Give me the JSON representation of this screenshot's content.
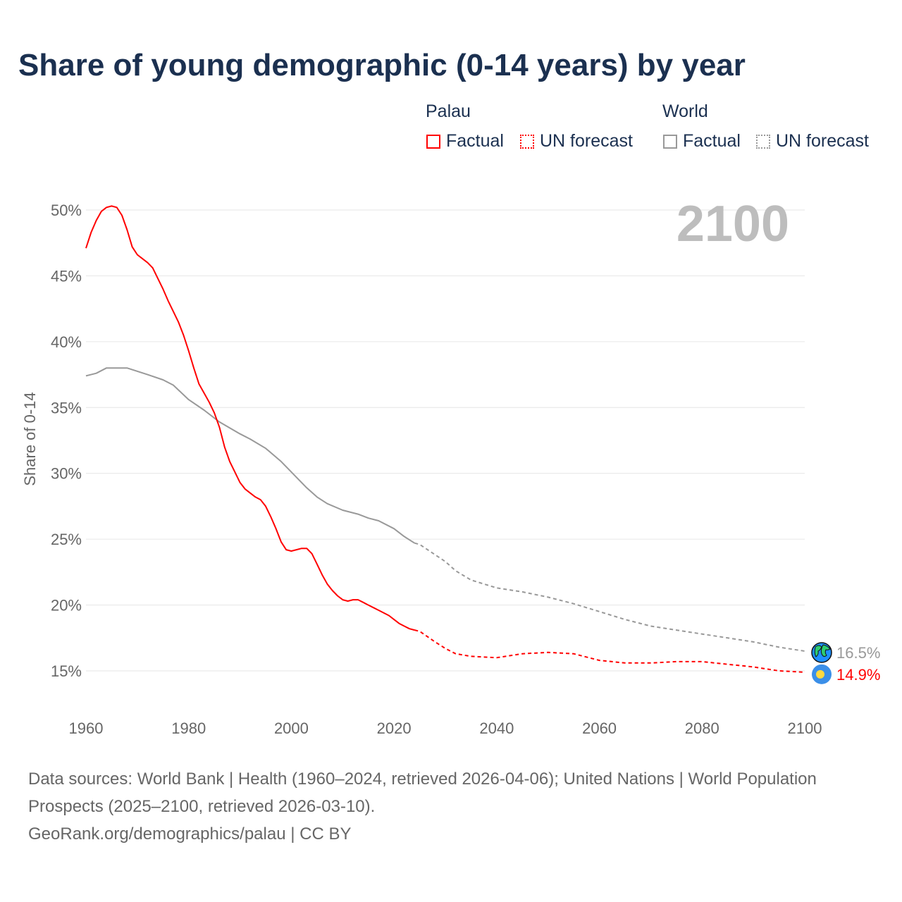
{
  "title": "Share of young demographic (0-14 years) by year",
  "legend": {
    "groups": [
      {
        "name": "Palau",
        "color": "#ff0000",
        "items": [
          "Factual",
          "UN forecast"
        ]
      },
      {
        "name": "World",
        "color": "#999999",
        "items": [
          "Factual",
          "UN forecast"
        ]
      }
    ]
  },
  "chart_data": {
    "type": "line",
    "title": "Share of young demographic (0-14 years) by year",
    "xlabel": "",
    "ylabel": "Share of 0-14",
    "xlim": [
      1960,
      2100
    ],
    "ylim": [
      15,
      50
    ],
    "x_ticks": [
      "1960",
      "1980",
      "2000",
      "2020",
      "2040",
      "2060",
      "2080",
      "2100"
    ],
    "y_ticks": [
      "15%",
      "20%",
      "25%",
      "30%",
      "35%",
      "40%",
      "45%",
      "50%"
    ],
    "grid": true,
    "year_watermark": "2100",
    "series": [
      {
        "name": "Palau Factual",
        "color": "#ff0000",
        "dashed": false,
        "x": [
          1960,
          1961,
          1962,
          1963,
          1964,
          1965,
          1966,
          1967,
          1968,
          1969,
          1970,
          1971,
          1972,
          1973,
          1974,
          1975,
          1976,
          1977,
          1978,
          1979,
          1980,
          1981,
          1982,
          1983,
          1984,
          1985,
          1986,
          1987,
          1988,
          1989,
          1990,
          1991,
          1992,
          1993,
          1994,
          1995,
          1996,
          1997,
          1998,
          1999,
          2000,
          2001,
          2002,
          2003,
          2004,
          2005,
          2006,
          2007,
          2008,
          2009,
          2010,
          2011,
          2012,
          2013,
          2014,
          2015,
          2016,
          2017,
          2018,
          2019,
          2020,
          2021,
          2022,
          2023,
          2024
        ],
        "y": [
          47.1,
          48.3,
          49.2,
          49.9,
          50.2,
          50.3,
          50.2,
          49.6,
          48.5,
          47.2,
          46.6,
          46.3,
          46.0,
          45.6,
          44.8,
          44.0,
          43.1,
          42.3,
          41.5,
          40.5,
          39.3,
          38.0,
          36.8,
          36.1,
          35.4,
          34.6,
          33.5,
          32.0,
          30.9,
          30.1,
          29.3,
          28.8,
          28.5,
          28.2,
          28.0,
          27.5,
          26.7,
          25.8,
          24.8,
          24.2,
          24.1,
          24.2,
          24.3,
          24.3,
          23.9,
          23.1,
          22.3,
          21.6,
          21.1,
          20.7,
          20.4,
          20.3,
          20.4,
          20.4,
          20.2,
          20.0,
          19.8,
          19.6,
          19.4,
          19.2,
          18.9,
          18.6,
          18.4,
          18.2,
          18.1
        ]
      },
      {
        "name": "Palau UN forecast",
        "color": "#ff0000",
        "dashed": true,
        "x": [
          2024,
          2025,
          2028,
          2030,
          2032,
          2035,
          2040,
          2045,
          2050,
          2055,
          2060,
          2065,
          2070,
          2075,
          2080,
          2085,
          2090,
          2095,
          2100
        ],
        "y": [
          18.1,
          18.0,
          17.2,
          16.7,
          16.3,
          16.1,
          16.0,
          16.3,
          16.4,
          16.3,
          15.8,
          15.6,
          15.6,
          15.7,
          15.7,
          15.5,
          15.3,
          15.0,
          14.9
        ]
      },
      {
        "name": "World Factual",
        "color": "#999999",
        "dashed": false,
        "x": [
          1960,
          1962,
          1964,
          1968,
          1972,
          1975,
          1977,
          1980,
          1983,
          1986,
          1990,
          1992,
          1995,
          1998,
          2000,
          2003,
          2005,
          2007,
          2010,
          2013,
          2015,
          2017,
          2020,
          2022,
          2024
        ],
        "y": [
          37.4,
          37.6,
          38.0,
          38.0,
          37.5,
          37.1,
          36.7,
          35.6,
          34.8,
          33.9,
          33.0,
          32.6,
          31.9,
          30.9,
          30.1,
          28.9,
          28.2,
          27.7,
          27.2,
          26.9,
          26.6,
          26.4,
          25.8,
          25.2,
          24.7
        ]
      },
      {
        "name": "World UN forecast",
        "color": "#999999",
        "dashed": true,
        "x": [
          2024,
          2025,
          2030,
          2032,
          2035,
          2040,
          2045,
          2050,
          2055,
          2060,
          2065,
          2070,
          2075,
          2080,
          2085,
          2090,
          2095,
          2100
        ],
        "y": [
          24.7,
          24.6,
          23.3,
          22.6,
          21.9,
          21.3,
          21.0,
          20.6,
          20.1,
          19.5,
          18.9,
          18.4,
          18.1,
          17.8,
          17.5,
          17.2,
          16.8,
          16.5
        ]
      }
    ],
    "end_labels": [
      {
        "series": "World",
        "value": "16.5%",
        "icon": "globe-icon",
        "color": "#999999"
      },
      {
        "series": "Palau",
        "value": "14.9%",
        "icon": "palau-flag-icon",
        "color": "#ff0000"
      }
    ]
  },
  "footer": {
    "sources": "Data sources: World Bank | Health (1960–2024, retrieved 2026-04-06); United Nations | World Population Prospects (2025–2100, retrieved 2026-03-10).",
    "credit": "GeoRank.org/demographics/palau | CC BY"
  }
}
